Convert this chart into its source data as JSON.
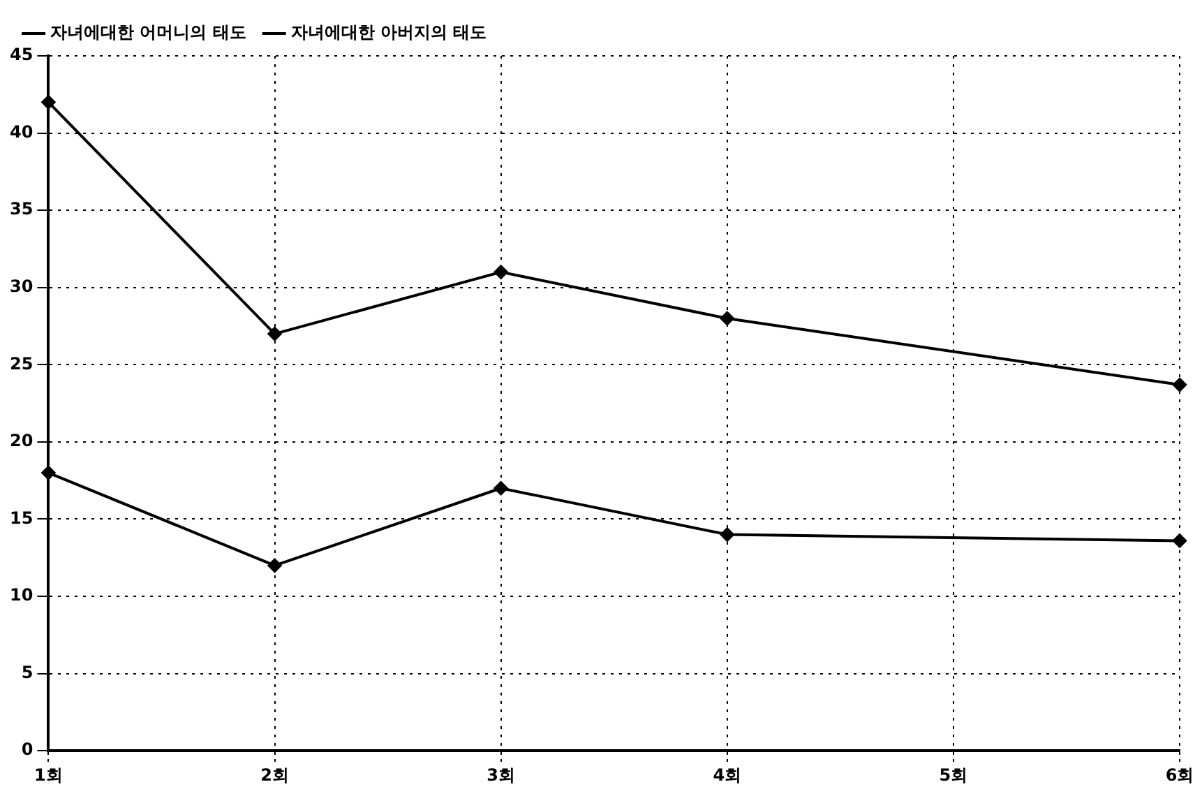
{
  "chart_data": {
    "type": "line",
    "categories": [
      "1회",
      "2회",
      "3회",
      "4회",
      "5회",
      "6회"
    ],
    "series": [
      {
        "name": "자녀에대한 어머니의 태도",
        "color": "#000000",
        "values": [
          42,
          27,
          31,
          28,
          null,
          23.7
        ]
      },
      {
        "name": "자녀에대한 아버지의 태도",
        "color": "#000000",
        "values": [
          18,
          12,
          17,
          14,
          null,
          13.6
        ]
      }
    ],
    "ylim": [
      0,
      45
    ],
    "yticks": [
      0,
      5,
      10,
      15,
      20,
      25,
      30,
      35,
      40,
      45
    ],
    "grid": true,
    "legend": "top",
    "marker": "diamond",
    "line_style": "solid"
  }
}
